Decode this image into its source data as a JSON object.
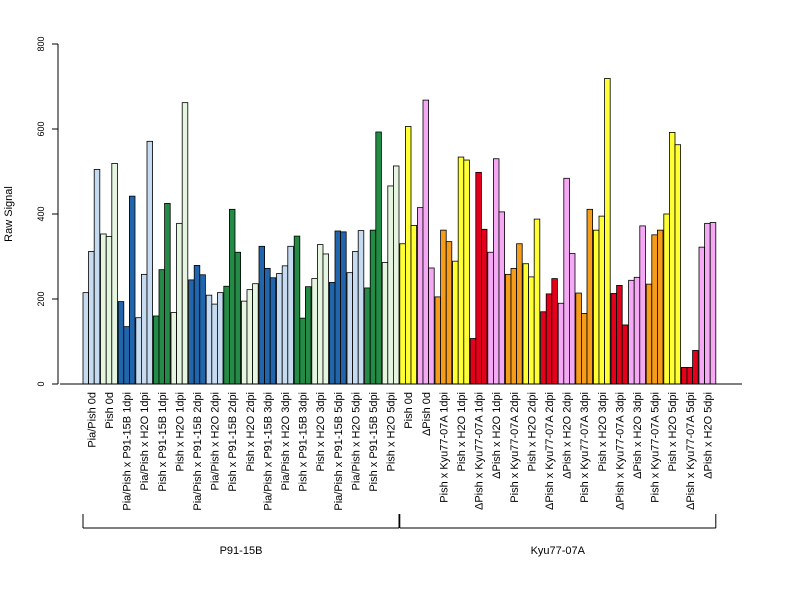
{
  "chart_data": {
    "type": "bar",
    "ylabel": "Raw Signal",
    "ylim": [
      0,
      800
    ],
    "yticks": [
      "0",
      "200",
      "400",
      "600",
      "800"
    ],
    "grid": false,
    "legend": "none",
    "groups": [
      {
        "label": "P91-15B",
        "categories": 18
      },
      {
        "label": "Kyu77-07A",
        "categories": 18
      }
    ],
    "categories": [
      {
        "label": "Pia/Pish 0d",
        "color": "#c6dbef",
        "values": [
          215,
          312,
          505
        ]
      },
      {
        "label": "Pish 0d",
        "color": "#e5f5e0",
        "values": [
          353,
          347,
          519
        ]
      },
      {
        "label": "Pia/Pish x P91-15B 1dpi",
        "color": "#2166ac",
        "values": [
          194,
          135,
          442
        ]
      },
      {
        "label": "Pia/Pish x H2O 1dpi",
        "color": "#c6dbef",
        "values": [
          156,
          258,
          571
        ]
      },
      {
        "label": "Pish x P91-15B 1dpi",
        "color": "#238b45",
        "values": [
          160,
          269,
          425
        ]
      },
      {
        "label": "Pish x H2O 1dpi",
        "color": "#e5f5e0",
        "values": [
          168,
          378,
          662
        ]
      },
      {
        "label": "Pia/Pish x P91-15B 2dpi",
        "color": "#2166ac",
        "values": [
          245,
          279,
          257
        ]
      },
      {
        "label": "Pia/Pish x H2O 2dpi",
        "color": "#c6dbef",
        "values": [
          209,
          188,
          215
        ]
      },
      {
        "label": "Pish x P91-15B 2dpi",
        "color": "#238b45",
        "values": [
          230,
          411,
          310
        ]
      },
      {
        "label": "Pish x H2O 2dpi",
        "color": "#e5f5e0",
        "values": [
          195,
          222,
          236
        ]
      },
      {
        "label": "Pia/Pish x P91-15B 3dpi",
        "color": "#2166ac",
        "values": [
          324,
          272,
          250
        ]
      },
      {
        "label": "Pia/Pish x H2O 3dpi",
        "color": "#c6dbef",
        "values": [
          260,
          278,
          324
        ]
      },
      {
        "label": "Pish x P91-15B 3dpi",
        "color": "#238b45",
        "values": [
          348,
          155,
          229
        ]
      },
      {
        "label": "Pish x H2O 3dpi",
        "color": "#e5f5e0",
        "values": [
          248,
          328,
          306
        ]
      },
      {
        "label": "Pia/Pish x P91-15B 5dpi",
        "color": "#2166ac",
        "values": [
          239,
          360,
          358
        ]
      },
      {
        "label": "Pia/Pish x H2O 5dpi",
        "color": "#c6dbef",
        "values": [
          262,
          312,
          361
        ]
      },
      {
        "label": "Pish x P91-15B 5dpi",
        "color": "#238b45",
        "values": [
          226,
          362,
          593
        ]
      },
      {
        "label": "Pish x H2O 5dpi",
        "color": "#e5f5e0",
        "values": [
          286,
          466,
          513
        ]
      },
      {
        "label": "Pish 0d",
        "color": "#ffff33",
        "values": [
          330,
          606,
          373
        ]
      },
      {
        "label": "ΔPish 0d",
        "color": "#f5a9f5",
        "values": [
          415,
          668,
          273
        ]
      },
      {
        "label": "Pish x Kyu77-07A 1dpi",
        "color": "#f59c1a",
        "values": [
          205,
          362,
          335
        ]
      },
      {
        "label": "Pish x H2O 1dpi",
        "color": "#ffff33",
        "values": [
          289,
          534,
          527
        ]
      },
      {
        "label": "ΔPish x Kyu77-07A 1dpi",
        "color": "#e3001b",
        "values": [
          107,
          498,
          364
        ]
      },
      {
        "label": "ΔPish x H2O 1dpi",
        "color": "#f5a9f5",
        "values": [
          310,
          530,
          405
        ]
      },
      {
        "label": "Pish x Kyu77-07A 2dpi",
        "color": "#f59c1a",
        "values": [
          258,
          272,
          330
        ]
      },
      {
        "label": "Pish x H2O 2dpi",
        "color": "#ffff33",
        "values": [
          283,
          252,
          388
        ]
      },
      {
        "label": "ΔPish x Kyu77-07A 2dpi",
        "color": "#e3001b",
        "values": [
          170,
          212,
          248
        ]
      },
      {
        "label": "ΔPish x H2O 2dpi",
        "color": "#f5a9f5",
        "values": [
          190,
          484,
          307
        ]
      },
      {
        "label": "Pish x Kyu77-07A 3dpi",
        "color": "#f59c1a",
        "values": [
          214,
          166,
          411
        ]
      },
      {
        "label": "Pish x H2O 3dpi",
        "color": "#ffff33",
        "values": [
          362,
          395,
          719
        ]
      },
      {
        "label": "ΔPish x Kyu77-07A 3dpi",
        "color": "#e3001b",
        "values": [
          213,
          232,
          139
        ]
      },
      {
        "label": "ΔPish x H2O 3dpi",
        "color": "#f5a9f5",
        "values": [
          244,
          251,
          372
        ]
      },
      {
        "label": "Pish x Kyu77-07A 5dpi",
        "color": "#f59c1a",
        "values": [
          235,
          351,
          362
        ]
      },
      {
        "label": "Pish x H2O 5dpi",
        "color": "#ffff33",
        "values": [
          400,
          592,
          563
        ]
      },
      {
        "label": "ΔPish x Kyu77-07A 5dpi",
        "color": "#e3001b",
        "values": [
          39,
          39,
          79
        ]
      },
      {
        "label": "ΔPish x H2O 5dpi",
        "color": "#f5a9f5",
        "values": [
          322,
          378,
          380
        ]
      }
    ]
  }
}
